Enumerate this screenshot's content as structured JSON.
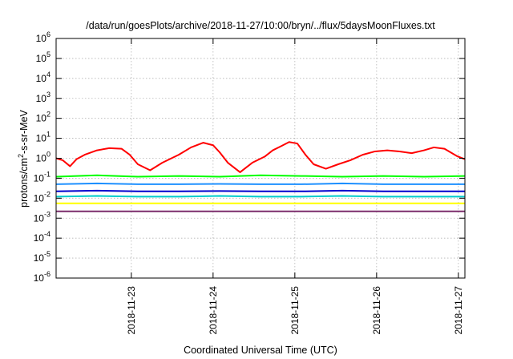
{
  "chart_data": {
    "type": "line",
    "title": "/data/run/goesPlots/archive/2018-11-27/10:00/bryn/../flux/5daysMoonFluxes.txt",
    "xlabel": "Coordinated Universal Time (UTC)",
    "ylabel_main": "protons/cm",
    "ylabel_sup": "2",
    "ylabel_rest": "-s-sr-MeV",
    "y_scale": "log",
    "ylim": [
      1e-06,
      1000000.0
    ],
    "xlim_days": [
      0,
      5
    ],
    "grid": true,
    "legend": "none",
    "y_ticks": [
      {
        "base": "10",
        "exp": "-6",
        "value": -6
      },
      {
        "base": "10",
        "exp": "-5",
        "value": -5
      },
      {
        "base": "10",
        "exp": "-4",
        "value": -4
      },
      {
        "base": "10",
        "exp": "-3",
        "value": -3
      },
      {
        "base": "10",
        "exp": "-2",
        "value": -2
      },
      {
        "base": "10",
        "exp": "-1",
        "value": -1
      },
      {
        "base": "10",
        "exp": "0",
        "value": 0
      },
      {
        "base": "10",
        "exp": "1",
        "value": 1
      },
      {
        "base": "10",
        "exp": "2",
        "value": 2
      },
      {
        "base": "10",
        "exp": "3",
        "value": 3
      },
      {
        "base": "10",
        "exp": "4",
        "value": 4
      },
      {
        "base": "10",
        "exp": "5",
        "value": 5
      },
      {
        "base": "10",
        "exp": "6",
        "value": 6
      }
    ],
    "x_ticks": [
      {
        "label": "2018-11-23",
        "day": 0.92
      },
      {
        "label": "2018-11-24",
        "day": 1.92
      },
      {
        "label": "2018-11-25",
        "day": 2.92
      },
      {
        "label": "2018-11-26",
        "day": 3.92
      },
      {
        "label": "2018-11-27",
        "day": 4.92
      }
    ],
    "series": [
      {
        "color": "#ff0000",
        "x": [
          0,
          0.08,
          0.17,
          0.25,
          0.35,
          0.5,
          0.65,
          0.8,
          0.9,
          1.0,
          1.15,
          1.3,
          1.5,
          1.65,
          1.8,
          1.92,
          2.0,
          2.1,
          2.25,
          2.4,
          2.55,
          2.65,
          2.75,
          2.85,
          2.95,
          3.05,
          3.15,
          3.3,
          3.45,
          3.6,
          3.75,
          3.9,
          4.05,
          4.2,
          4.35,
          4.5,
          4.62,
          4.75,
          4.9,
          5.0
        ],
        "y": [
          1.0,
          0.8,
          0.4,
          0.9,
          1.5,
          2.5,
          3.2,
          3.0,
          1.5,
          0.5,
          0.25,
          0.6,
          1.5,
          3.5,
          6.0,
          4.5,
          2.0,
          0.6,
          0.2,
          0.6,
          1.2,
          2.5,
          4.0,
          6.5,
          5.5,
          1.5,
          0.5,
          0.3,
          0.5,
          0.8,
          1.5,
          2.2,
          2.5,
          2.2,
          1.8,
          2.5,
          3.5,
          3.0,
          1.3,
          0.9
        ]
      },
      {
        "color": "#00ff00",
        "x": [
          0,
          0.5,
          1.0,
          1.5,
          2.0,
          2.5,
          3.0,
          3.5,
          4.0,
          4.5,
          5.0
        ],
        "y": [
          0.12,
          0.14,
          0.12,
          0.13,
          0.12,
          0.14,
          0.13,
          0.12,
          0.13,
          0.12,
          0.13
        ]
      },
      {
        "color": "#1e90ff",
        "x": [
          0,
          0.5,
          1.0,
          1.5,
          2.0,
          2.5,
          3.0,
          3.5,
          4.0,
          4.5,
          5.0
        ],
        "y": [
          0.05,
          0.055,
          0.05,
          0.05,
          0.052,
          0.05,
          0.05,
          0.055,
          0.05,
          0.05,
          0.05
        ]
      },
      {
        "color": "#0000cd",
        "x": [
          0,
          0.5,
          1.0,
          1.5,
          2.0,
          2.5,
          3.0,
          3.5,
          4.0,
          4.5,
          5.0
        ],
        "y": [
          0.022,
          0.024,
          0.022,
          0.022,
          0.023,
          0.022,
          0.022,
          0.024,
          0.022,
          0.022,
          0.022
        ]
      },
      {
        "color": "#00cccc",
        "x": [
          0,
          0.5,
          1.0,
          1.5,
          2.0,
          2.5,
          3.0,
          3.5,
          4.0,
          4.5,
          5.0
        ],
        "y": [
          0.012,
          0.013,
          0.012,
          0.012,
          0.013,
          0.012,
          0.012,
          0.013,
          0.012,
          0.012,
          0.012
        ]
      },
      {
        "color": "#ffff00",
        "x": [
          0,
          0.5,
          1.0,
          1.5,
          2.0,
          2.5,
          3.0,
          3.5,
          4.0,
          4.5,
          5.0
        ],
        "y": [
          0.0055,
          0.0055,
          0.0055,
          0.0055,
          0.0055,
          0.0055,
          0.0055,
          0.0055,
          0.0055,
          0.0055,
          0.0055
        ]
      },
      {
        "color": "#7b2d6b",
        "x": [
          0,
          0.5,
          1.0,
          1.5,
          2.0,
          2.5,
          3.0,
          3.5,
          4.0,
          4.5,
          5.0
        ],
        "y": [
          0.0022,
          0.0022,
          0.0022,
          0.0022,
          0.0022,
          0.0022,
          0.0022,
          0.0022,
          0.0022,
          0.0022,
          0.0022
        ]
      }
    ]
  }
}
